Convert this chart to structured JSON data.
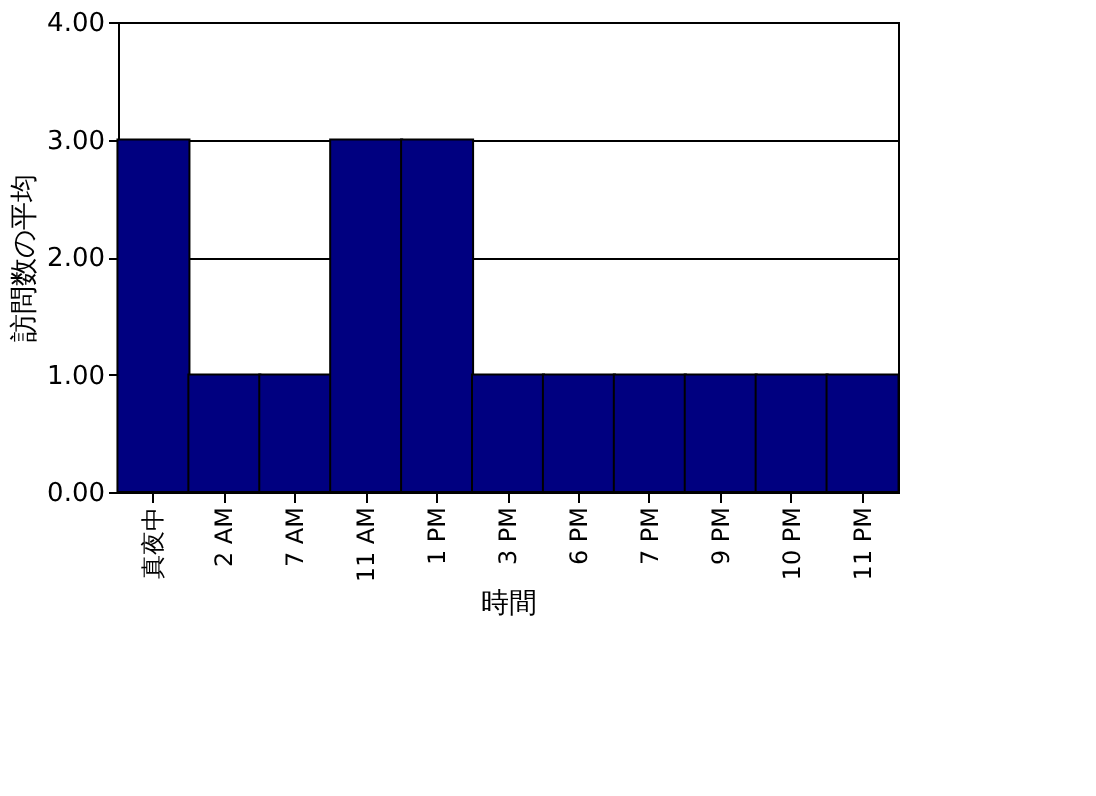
{
  "chart_data": {
    "type": "bar",
    "xlabel": "時間",
    "ylabel": "訪問数の平均",
    "categories": [
      "真夜中",
      "2 AM",
      "7 AM",
      "11 AM",
      "1 PM",
      "3 PM",
      "6 PM",
      "7 PM",
      "9 PM",
      "10 PM",
      "11 PM"
    ],
    "values": [
      3,
      1,
      1,
      3,
      3,
      1,
      1,
      1,
      1,
      1,
      1
    ],
    "color": "#000080",
    "ylim": [
      0,
      4
    ],
    "yticks": [
      {
        "value": 0,
        "label": "0.00"
      },
      {
        "value": 1,
        "label": "1.00"
      },
      {
        "value": 2,
        "label": "2.00"
      },
      {
        "value": 3,
        "label": "3.00"
      },
      {
        "value": 4,
        "label": "4.00"
      }
    ],
    "grid": "y"
  }
}
